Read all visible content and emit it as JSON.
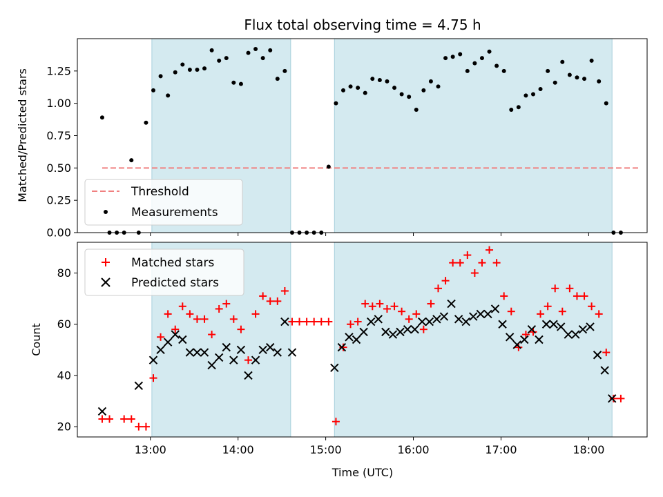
{
  "chart_data": [
    {
      "type": "scatter",
      "title": "Flux total observing time = 4.75 h",
      "xlabel": "",
      "ylabel": "Matched/Predicted stars",
      "ylim": [
        0,
        1.5
      ],
      "xlim": [
        "12:10",
        "18:40"
      ],
      "yticks": [
        "0.00",
        "0.25",
        "0.50",
        "0.75",
        "1.00",
        "1.25"
      ],
      "xticks": [],
      "shaded_intervals": [
        [
          "13:01",
          "14:36"
        ],
        [
          "15:06",
          "18:16"
        ]
      ],
      "shade_color": "#d4eaf0",
      "threshold": {
        "name": "Threshold",
        "value": 0.5,
        "x_start": "12:27",
        "x_end": "18:34",
        "color": "#f08080"
      },
      "series": [
        {
          "name": "Measurements",
          "color": "#000000",
          "x": [
            "12:27",
            "12:32",
            "12:37",
            "12:42",
            "12:47",
            "12:52",
            "12:57",
            "13:02",
            "13:07",
            "13:12",
            "13:17",
            "13:22",
            "13:27",
            "13:32",
            "13:37",
            "13:42",
            "13:47",
            "13:52",
            "13:57",
            "14:02",
            "14:07",
            "14:12",
            "14:17",
            "14:22",
            "14:27",
            "14:32",
            "14:37",
            "14:42",
            "14:47",
            "14:52",
            "14:57",
            "15:02",
            "15:07",
            "15:12",
            "15:17",
            "15:22",
            "15:27",
            "15:32",
            "15:37",
            "15:42",
            "15:47",
            "15:52",
            "15:57",
            "16:02",
            "16:07",
            "16:12",
            "16:17",
            "16:22",
            "16:27",
            "16:32",
            "16:37",
            "16:42",
            "16:47",
            "16:52",
            "16:57",
            "17:02",
            "17:07",
            "17:12",
            "17:17",
            "17:22",
            "17:27",
            "17:32",
            "17:37",
            "17:42",
            "17:47",
            "17:52",
            "17:57",
            "18:02",
            "18:07",
            "18:12",
            "18:17",
            "18:22"
          ],
          "values": [
            0.89,
            0.0,
            0.0,
            0.0,
            0.56,
            0.0,
            0.85,
            1.1,
            1.21,
            1.06,
            1.24,
            1.3,
            1.26,
            1.26,
            1.27,
            1.41,
            1.33,
            1.35,
            1.16,
            1.15,
            1.39,
            1.42,
            1.35,
            1.41,
            1.19,
            1.25,
            0.0,
            0.0,
            0.0,
            0.0,
            0.0,
            0.51,
            1.0,
            1.1,
            1.13,
            1.12,
            1.08,
            1.19,
            1.18,
            1.17,
            1.12,
            1.07,
            1.05,
            0.95,
            1.1,
            1.17,
            1.13,
            1.35,
            1.36,
            1.38,
            1.25,
            1.31,
            1.35,
            1.4,
            1.29,
            1.25,
            0.95,
            0.97,
            1.06,
            1.07,
            1.11,
            1.25,
            1.16,
            1.32,
            1.22,
            1.2,
            1.19,
            1.33,
            1.17,
            1.0,
            0.0,
            0.0
          ]
        }
      ]
    },
    {
      "type": "scatter",
      "title": "",
      "xlabel": "Time (UTC)",
      "ylabel": "Count",
      "ylim": [
        16,
        92
      ],
      "xlim": [
        "12:10",
        "18:40"
      ],
      "xticks": [
        "13:00",
        "14:00",
        "15:00",
        "16:00",
        "17:00",
        "18:00"
      ],
      "yticks": [
        "20",
        "40",
        "60",
        "80"
      ],
      "shaded_intervals": [
        [
          "13:01",
          "14:36"
        ],
        [
          "15:06",
          "18:16"
        ]
      ],
      "series": [
        {
          "name": "Matched stars",
          "marker": "plus",
          "color": "#ff0000",
          "x": [
            "12:27",
            "12:32",
            "12:42",
            "12:47",
            "12:52",
            "12:57",
            "13:02",
            "13:07",
            "13:12",
            "13:17",
            "13:22",
            "13:27",
            "13:32",
            "13:37",
            "13:42",
            "13:47",
            "13:52",
            "13:57",
            "14:02",
            "14:07",
            "14:12",
            "14:17",
            "14:22",
            "14:27",
            "14:32",
            "14:37",
            "14:42",
            "14:47",
            "14:52",
            "14:57",
            "15:02",
            "15:07",
            "15:12",
            "15:17",
            "15:22",
            "15:27",
            "15:32",
            "15:37",
            "15:42",
            "15:47",
            "15:52",
            "15:57",
            "16:02",
            "16:07",
            "16:12",
            "16:17",
            "16:22",
            "16:27",
            "16:32",
            "16:37",
            "16:42",
            "16:47",
            "16:52",
            "16:57",
            "17:02",
            "17:07",
            "17:12",
            "17:17",
            "17:22",
            "17:27",
            "17:32",
            "17:37",
            "17:42",
            "17:47",
            "17:52",
            "17:57",
            "18:02",
            "18:07",
            "18:12",
            "18:17",
            "18:22"
          ],
          "values": [
            23,
            23,
            23,
            23,
            20,
            20,
            39,
            55,
            64,
            58,
            67,
            64,
            62,
            62,
            56,
            66,
            68,
            62,
            58,
            46,
            64,
            71,
            69,
            69,
            73,
            61,
            61,
            61,
            61,
            61,
            61,
            22,
            51,
            60,
            61,
            68,
            67,
            68,
            66,
            67,
            65,
            62,
            64,
            58,
            68,
            74,
            77,
            84,
            84,
            87,
            80,
            84,
            89,
            84,
            71,
            65,
            51,
            56,
            57,
            64,
            67,
            74,
            65,
            74,
            71,
            71,
            67,
            64,
            49,
            31,
            31
          ]
        },
        {
          "name": "Predicted stars",
          "marker": "x",
          "color": "#000000",
          "x": [
            "12:27",
            "12:52",
            "13:02",
            "13:07",
            "13:12",
            "13:17",
            "13:22",
            "13:27",
            "13:32",
            "13:37",
            "13:42",
            "13:47",
            "13:52",
            "13:57",
            "14:02",
            "14:07",
            "14:12",
            "14:17",
            "14:22",
            "14:27",
            "14:32",
            "14:37",
            "15:06",
            "15:11",
            "15:16",
            "15:21",
            "15:26",
            "15:31",
            "15:36",
            "15:41",
            "15:46",
            "15:51",
            "15:56",
            "16:01",
            "16:06",
            "16:11",
            "16:16",
            "16:21",
            "16:26",
            "16:31",
            "16:36",
            "16:41",
            "16:46",
            "16:51",
            "16:56",
            "17:01",
            "17:06",
            "17:11",
            "17:16",
            "17:21",
            "17:26",
            "17:31",
            "17:36",
            "17:41",
            "17:46",
            "17:51",
            "17:56",
            "18:01",
            "18:06",
            "18:11",
            "18:16"
          ],
          "values": [
            26,
            36,
            46,
            50,
            53,
            56,
            54,
            49,
            49,
            49,
            44,
            47,
            51,
            46,
            50,
            40,
            46,
            50,
            51,
            49,
            61,
            49,
            43,
            51,
            55,
            54,
            57,
            61,
            62,
            57,
            56,
            57,
            58,
            58,
            61,
            61,
            62,
            63,
            68,
            62,
            61,
            63,
            64,
            64,
            66,
            60,
            55,
            52,
            54,
            58,
            54,
            60,
            60,
            59,
            56,
            56,
            58,
            59,
            48,
            42,
            31
          ]
        }
      ]
    }
  ]
}
